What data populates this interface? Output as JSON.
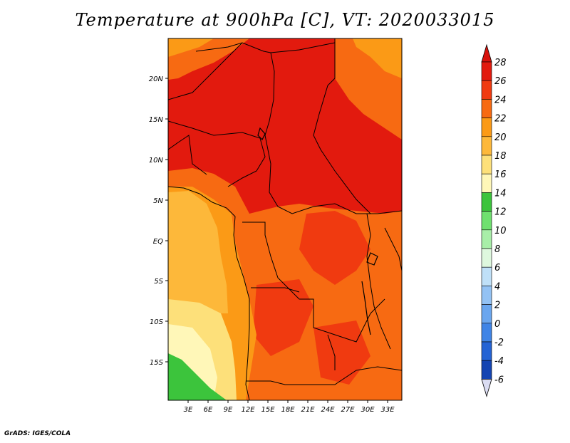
{
  "title": "Temperature at 900hPa [C], VT: 2020033015",
  "credit": "GrADS: IGES/COLA",
  "lat_labels": [
    "20N",
    "15N",
    "10N",
    "5N",
    "EQ",
    "5S",
    "10S",
    "15S"
  ],
  "lon_labels": [
    "3E",
    "6E",
    "9E",
    "12E",
    "15E",
    "18E",
    "21E",
    "24E",
    "27E",
    "30E",
    "33E"
  ],
  "colorbar": {
    "labels": [
      "28",
      "26",
      "24",
      "22",
      "20",
      "18",
      "16",
      "14",
      "12",
      "10",
      "8",
      "6",
      "4",
      "2",
      "0",
      "-2",
      "-4",
      "-6"
    ],
    "colors": [
      "#e21a0e",
      "#f03a10",
      "#f76a12",
      "#fb9a16",
      "#fdb83a",
      "#fde07a",
      "#fff7b8",
      "#3cc43c",
      "#6fe06f",
      "#a8eea8",
      "#def8de",
      "#bfe0f8",
      "#93c2f4",
      "#6aa6ef",
      "#3f84e6",
      "#2463d4",
      "#1444b2",
      "#0a2a8a",
      "#081870"
    ],
    "top_color": "#d8120c",
    "bottom_color": "#dadcf2"
  }
}
